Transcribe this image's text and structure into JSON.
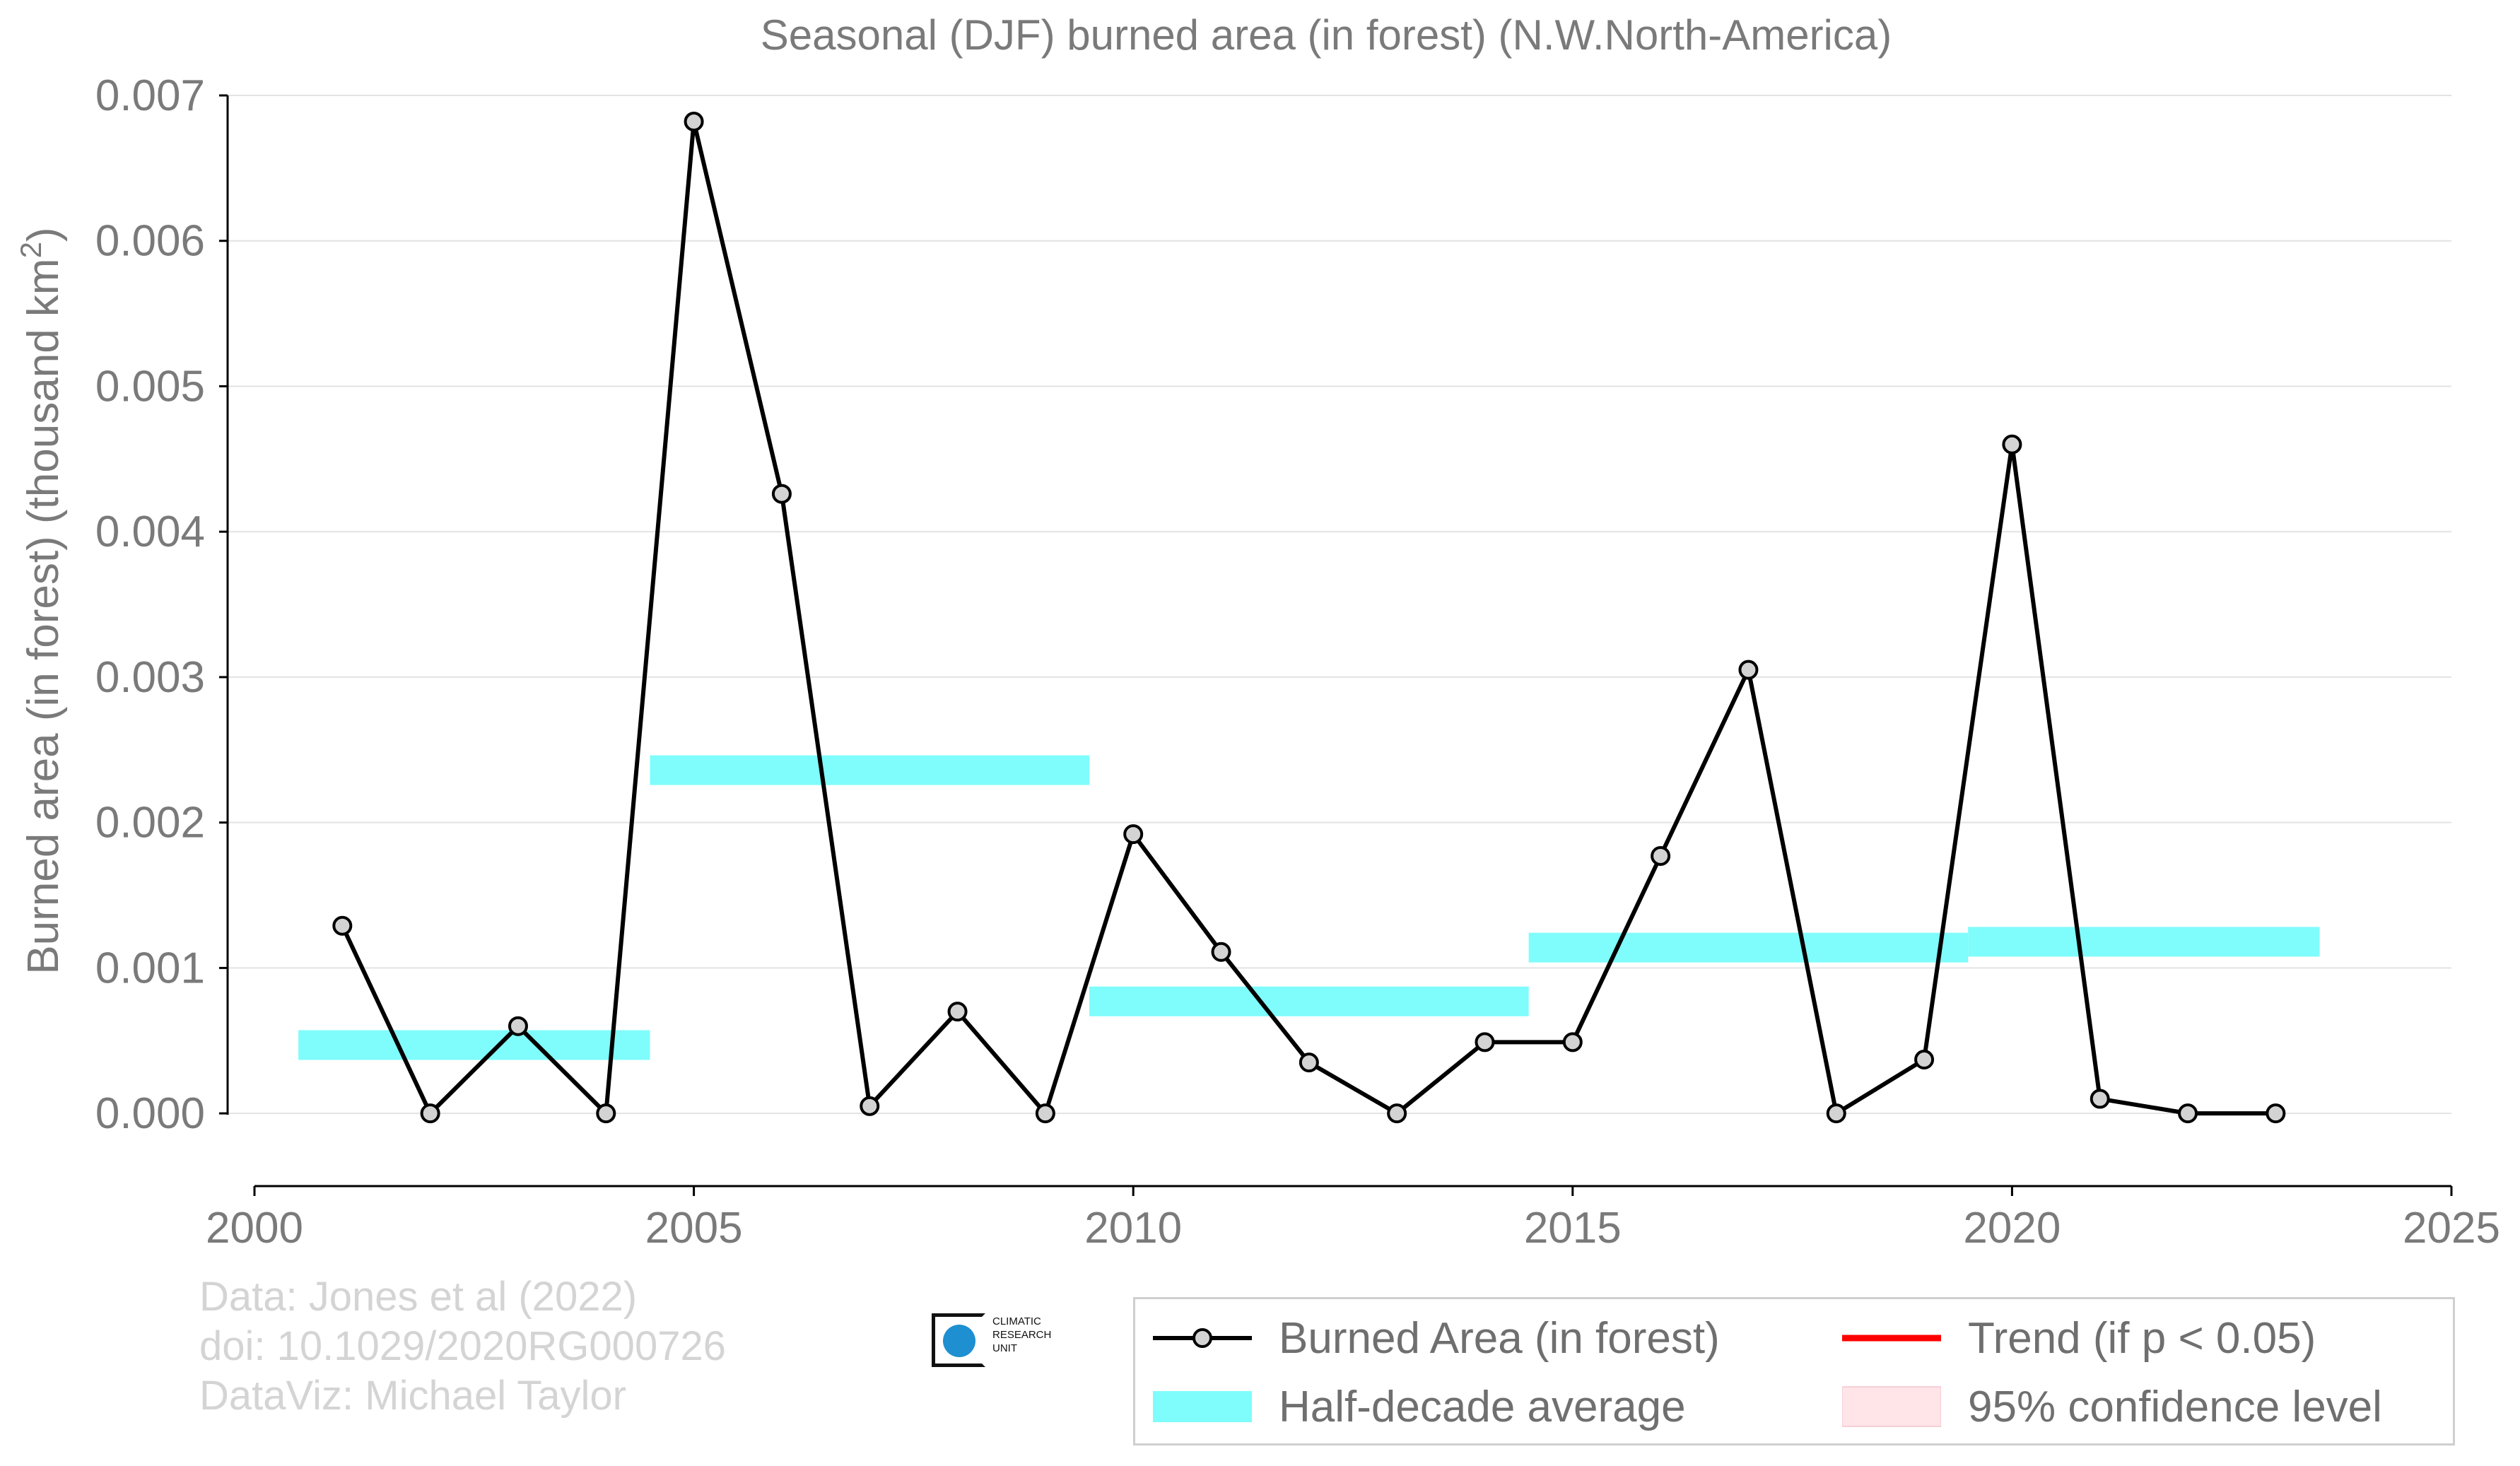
{
  "chart_data": {
    "type": "line",
    "title": "Seasonal (DJF) burned area (in forest) (N.W.North-America)",
    "ylabel_prefix": "Burned area (in forest) (thousand km",
    "ylabel_sup": "2",
    "ylabel_suffix": ")",
    "xlim": [
      2000,
      2025
    ],
    "ylim": [
      -0.0005,
      0.007
    ],
    "xticks": [
      2000,
      2005,
      2010,
      2015,
      2020,
      2025
    ],
    "yticks": [
      0.0,
      0.001,
      0.002,
      0.003,
      0.004,
      0.005,
      0.006,
      0.007
    ],
    "ytick_labels": [
      "0.000",
      "0.001",
      "0.002",
      "0.003",
      "0.004",
      "0.005",
      "0.006",
      "0.007"
    ],
    "grid": true,
    "series": [
      {
        "name": "Burned Area (in forest)",
        "color": "#000000",
        "marker_fill": "#d3d3d3",
        "x": [
          2001,
          2002,
          2003,
          2004,
          2005,
          2006,
          2007,
          2008,
          2009,
          2010,
          2011,
          2012,
          2013,
          2014,
          2015,
          2016,
          2017,
          2018,
          2019,
          2020,
          2021,
          2022,
          2023
        ],
        "y": [
          0.00129,
          0.0,
          0.0006,
          0.0,
          0.00682,
          0.00426,
          5e-05,
          0.0007,
          0.0,
          0.00192,
          0.00111,
          0.00035,
          0.0,
          0.00049,
          0.00049,
          0.00177,
          0.00305,
          0.0,
          0.00037,
          0.0046,
          0.0001,
          0.0,
          0.0
        ]
      }
    ],
    "half_decade_average": {
      "name": "Half-decade average",
      "color": "#7ffcfc",
      "segments": [
        {
          "x0": 2000.5,
          "x1": 2004.5,
          "y": 0.00047
        },
        {
          "x0": 2004.5,
          "x1": 2009.5,
          "y": 0.00236
        },
        {
          "x0": 2009.5,
          "x1": 2014.5,
          "y": 0.00077
        },
        {
          "x0": 2014.5,
          "x1": 2019.5,
          "y": 0.00114
        },
        {
          "x0": 2019.5,
          "x1": 2023.5,
          "y": 0.00118
        }
      ]
    },
    "legend_position": "bottom-right",
    "legend": [
      {
        "label": "Burned Area (in forest)",
        "kind": "line-marker",
        "color": "#000000"
      },
      {
        "label": "Trend (if p < 0.05)",
        "kind": "line",
        "color": "#ff0000"
      },
      {
        "label": "Half-decade average",
        "kind": "band",
        "color": "#7ffcfc"
      },
      {
        "label": "95% confidence level",
        "kind": "fill",
        "color": "#ffe4e8"
      }
    ]
  },
  "credits": {
    "line1": "Data: Jones et al (2022)",
    "line2": "doi: 10.1029/2020RG000726",
    "line3": "DataViz: Michael Taylor"
  },
  "logo": {
    "line1": "CLIMATIC",
    "line2": "RESEARCH",
    "line3": "UNIT"
  },
  "colors": {
    "text": "#7a7a7a",
    "grid": "#e3e3e3",
    "axis": "#000000"
  }
}
